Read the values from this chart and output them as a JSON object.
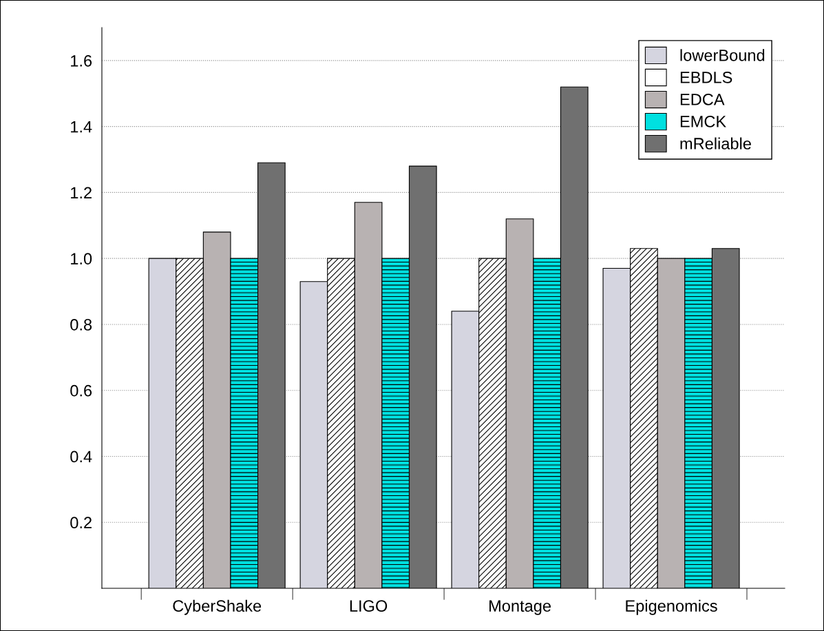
{
  "chart_data": {
    "type": "bar",
    "categories": [
      "CyberShake",
      "LIGO",
      "Montage",
      "Epigenomics"
    ],
    "series": [
      {
        "name": "lowerBound",
        "color": "#d5d5e0",
        "values": [
          1.0,
          0.93,
          0.84,
          0.97
        ]
      },
      {
        "name": "EBDLS",
        "color": "#ffffff",
        "values": [
          1.0,
          1.0,
          1.0,
          1.03
        ]
      },
      {
        "name": "EDCA",
        "color": "#b8b2b2",
        "values": [
          1.08,
          1.17,
          1.12,
          1.0
        ]
      },
      {
        "name": "EMCK",
        "color": "#00e0e0",
        "values": [
          1.0,
          1.0,
          1.0,
          1.0
        ]
      },
      {
        "name": "mReliable",
        "color": "#707070",
        "values": [
          1.29,
          1.28,
          1.52,
          1.03
        ]
      }
    ],
    "ylim": [
      0,
      1.7
    ],
    "yticks": [
      0.2,
      0.4,
      0.6,
      0.8,
      {
        "value": 1.0,
        "label": "1.0"
      },
      1.2,
      1.4,
      1.6
    ],
    "grid": "y",
    "legend": "top right"
  }
}
